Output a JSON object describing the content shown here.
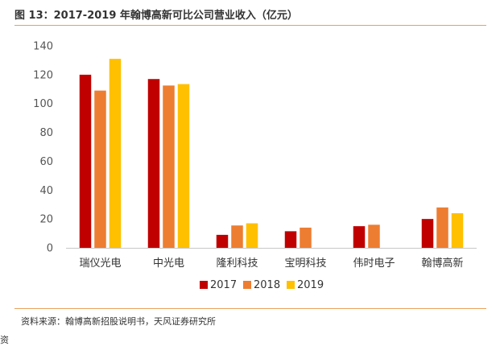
{
  "header": {
    "title": "图 13：2017-2019 年翰博高新可比公司营业收入（亿元）"
  },
  "footer": {
    "source": "资料来源：翰博高新招股说明书，天风证券研究所",
    "fragment": "资"
  },
  "chart_data": {
    "type": "bar",
    "title": "",
    "xlabel": "",
    "ylabel": "",
    "ylim": [
      0,
      140
    ],
    "yticks": [
      0,
      20,
      40,
      60,
      80,
      100,
      120,
      140
    ],
    "grid": false,
    "legend_position": "bottom",
    "categories": [
      "瑞仪光电",
      "中光电",
      "隆利科技",
      "宝明科技",
      "伟时电子",
      "翰博高新"
    ],
    "series": [
      {
        "name": "2017",
        "color": "#c00000",
        "values": [
          120,
          117,
          9,
          11.5,
          15,
          20
        ]
      },
      {
        "name": "2018",
        "color": "#ed7d31",
        "values": [
          109,
          112.5,
          15.5,
          14,
          16,
          28
        ]
      },
      {
        "name": "2019",
        "color": "#ffc000",
        "values": [
          131,
          113.5,
          17,
          null,
          null,
          24
        ]
      }
    ]
  }
}
